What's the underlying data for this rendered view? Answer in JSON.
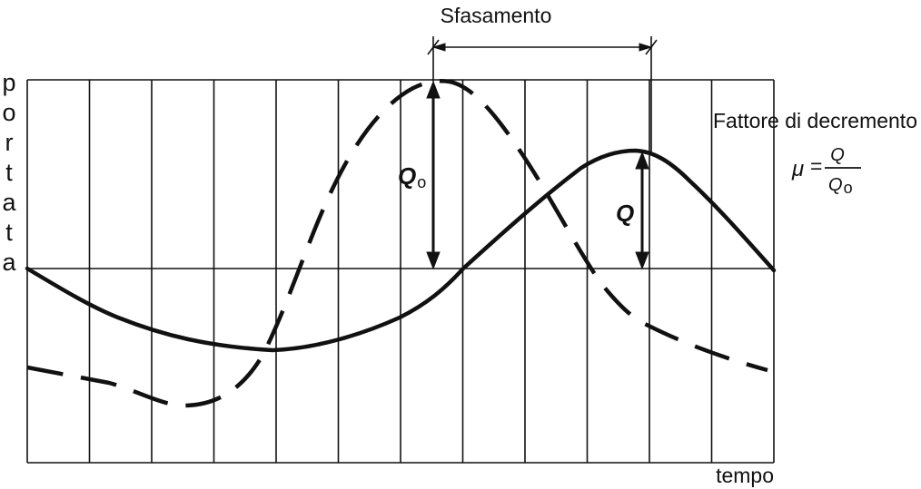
{
  "diagram": {
    "y_axis_label_letters": [
      "p",
      "o",
      "r",
      "t",
      "a",
      "t",
      "a"
    ],
    "x_axis_label": "tempo",
    "phase_shift_label": "Sfasamento",
    "decrement_factor_label": "Fattore di decremento",
    "incoming_amplitude_label": "Q",
    "incoming_amplitude_subscript": "o",
    "outgoing_amplitude_label": "Q",
    "formula": {
      "symbol": "μ",
      "equals": "=",
      "numerator": "Q",
      "denominator": "Q",
      "denominator_subscript": "o"
    },
    "colors": {
      "ink": "#111111",
      "background": "#ffffff"
    }
  }
}
